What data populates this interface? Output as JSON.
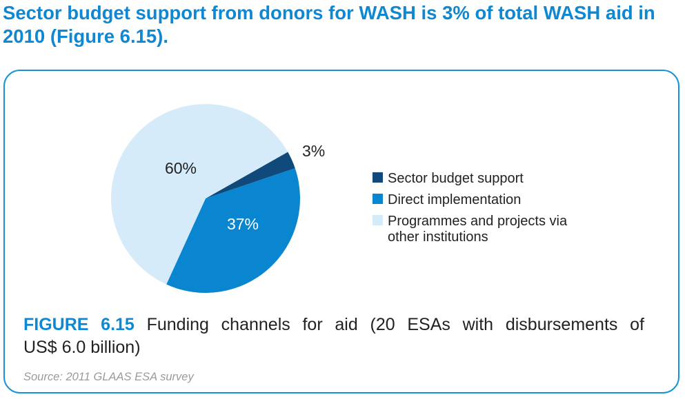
{
  "headline": "Sector budget support from donors for WASH is 3% of total WASH aid in 2010 (Figure 6.15).",
  "figure": {
    "label": "FIGURE 6.15",
    "caption_line1": "Funding channels for aid (20 ESAs with disbursements of",
    "caption_line2": "US$ 6.0 billion)",
    "source": "Source: 2011 GLAAS ESA survey"
  },
  "chart_data": {
    "type": "pie",
    "title": "",
    "slices": [
      {
        "name": "Sector budget support",
        "value": 3,
        "label": "3%",
        "color": "#0f4a7a"
      },
      {
        "name": "Direct implementation",
        "value": 37,
        "label": "37%",
        "color": "#0a85cf"
      },
      {
        "name": "Programmes and projects via other institutions",
        "value": 60,
        "label": "60%",
        "color": "#d5ebf9"
      }
    ],
    "legend": {
      "placement": "right",
      "entries": [
        {
          "lines": [
            "Sector budget support"
          ],
          "color": "#0f4a7a"
        },
        {
          "lines": [
            "Direct implementation"
          ],
          "color": "#0a85cf"
        },
        {
          "lines": [
            "Programmes and projects via",
            "other institutions"
          ],
          "color": "#d5ebf9"
        }
      ]
    }
  },
  "colors": {
    "accent": "#0e88d3",
    "frame": "#1493da"
  }
}
